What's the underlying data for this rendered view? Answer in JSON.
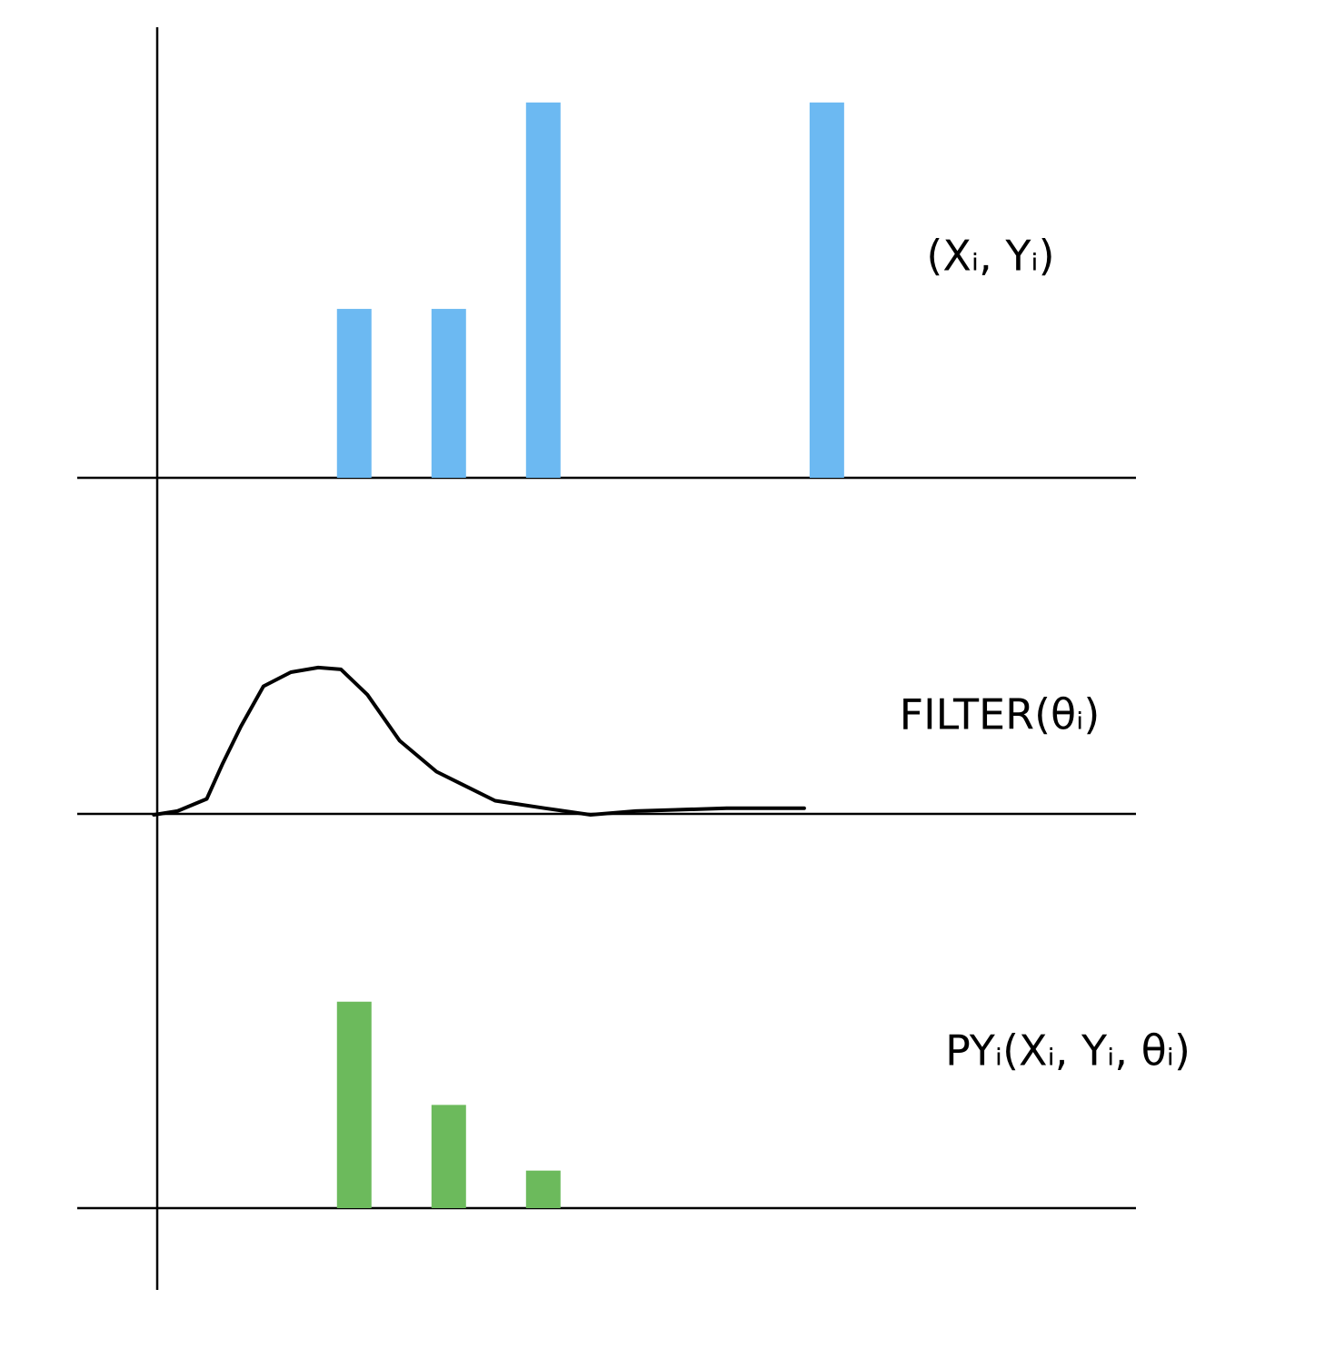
{
  "chart_data": [
    {
      "type": "bar",
      "title": "(Xᵢ, Yᵢ)",
      "x": [
        2,
        3,
        4,
        7
      ],
      "values": [
        1.8,
        1.8,
        4,
        4
      ],
      "color": "#6cb9f2",
      "xlim": [
        -0.93,
        10.27
      ],
      "ylim": [
        0,
        4.8
      ]
    },
    {
      "type": "line",
      "title": "FILTER(θᵢ)",
      "x": [
        -0.12,
        0.13,
        0.44,
        0.61,
        0.8,
        1.04,
        1.33,
        1.62,
        1.86,
        2.14,
        2.48,
        2.87,
        3.49,
        4.02,
        4.5,
        4.98,
        5.94,
        6.76
      ],
      "values": [
        -0.01,
        0.03,
        0.16,
        0.54,
        0.93,
        1.36,
        1.51,
        1.56,
        1.54,
        1.27,
        0.78,
        0.45,
        0.14,
        0.06,
        -0.01,
        0.03,
        0.06,
        0.06
      ],
      "color": "#000000",
      "xlim": [
        -0.93,
        10.27
      ],
      "ylim": [
        0,
        3.5
      ]
    },
    {
      "type": "bar",
      "title": "PYᵢ(Xᵢ, Yᵢ, θᵢ)",
      "x": [
        2,
        3,
        4
      ],
      "values": [
        2.2,
        1.1,
        0.4
      ],
      "color": "#6cba5c",
      "xlim": [
        -0.93,
        10.27
      ],
      "ylim": [
        0,
        3.6
      ]
    }
  ]
}
